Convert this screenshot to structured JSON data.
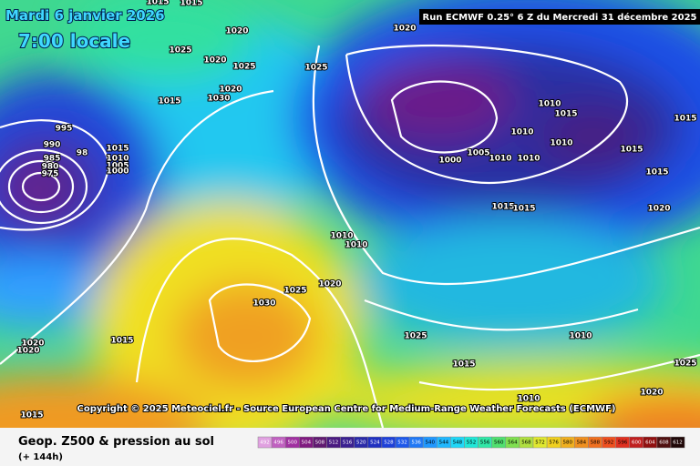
{
  "header": {
    "date": "Mardi 6 janvier 2026",
    "time": "7:00 locale",
    "run": "Run ECMWF 0.25° 6 Z du Mercredi 31 décembre 2025"
  },
  "copyright": "Copyright © 2025 Meteociel.fr - Source European Centre for Medium-Range Weather Forecasts (ECMWF)",
  "isobar_labels": [
    "1015",
    "1015",
    "1025",
    "1020",
    "1020",
    "1025",
    "1020",
    "1030",
    "1015",
    "995",
    "990",
    "985",
    "980",
    "975",
    "98",
    "1015",
    "1010",
    "1005",
    "1000",
    "1020",
    "1025",
    "1010",
    "1015",
    "1010",
    "1010",
    "1000",
    "1005",
    "1010",
    "1010",
    "1015",
    "1015",
    "1015",
    "1015",
    "1015",
    "1020",
    "1010",
    "1010",
    "1020",
    "1025",
    "1030",
    "1025",
    "1010",
    "1015",
    "1020",
    "1020",
    "1015",
    "1025",
    "1020",
    "1010",
    "1015"
  ],
  "legend": {
    "title": "Geop. Z500 & pression au sol",
    "subtitle": "(+ 144h)",
    "ticks": [
      492,
      496,
      500,
      504,
      508,
      512,
      516,
      520,
      524,
      528,
      532,
      536,
      540,
      544,
      548,
      552,
      556,
      560,
      564,
      568,
      572,
      576,
      580,
      584,
      588,
      592,
      596,
      600,
      604,
      608,
      612
    ],
    "colors": [
      "#e0a0e0",
      "#c060c0",
      "#a030a0",
      "#801a80",
      "#601a70",
      "#4a1a80",
      "#3a2090",
      "#2a2aa8",
      "#2030c0",
      "#1e40d8",
      "#1e58ea",
      "#2078f5",
      "#2098ff",
      "#20b8ff",
      "#20d8f8",
      "#20e8d8",
      "#30e8a8",
      "#50e070",
      "#80e050",
      "#b0e040",
      "#e0e830",
      "#f0d020",
      "#f0b020",
      "#f09020",
      "#f07020",
      "#f05020",
      "#e03020",
      "#c02020",
      "#901010",
      "#501010",
      "#200808"
    ]
  }
}
